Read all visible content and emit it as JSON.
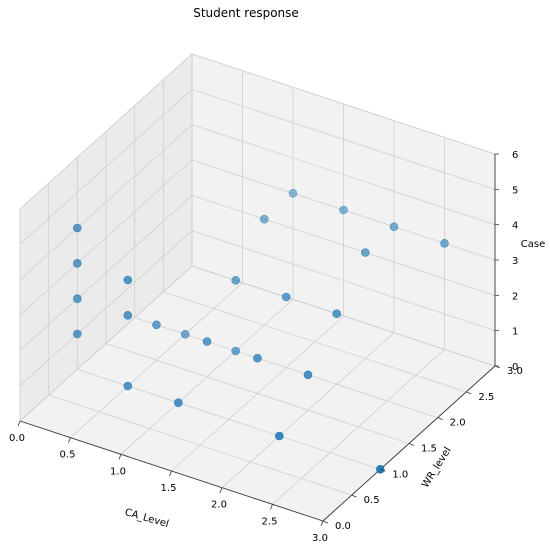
{
  "chart_data": {
    "type": "scatter3d",
    "title": "Student response",
    "xlabel": "CA_Level",
    "ylabel": "WR_level",
    "zlabel": "Case",
    "xlim": [
      0.0,
      3.0
    ],
    "ylim": [
      0.0,
      3.0
    ],
    "zlim": [
      0,
      6
    ],
    "x_ticks": [
      "0.0",
      "0.5",
      "1.0",
      "1.5",
      "2.0",
      "2.5",
      "3.0"
    ],
    "y_ticks": [
      "0.0",
      "0.5",
      "1.0",
      "1.5",
      "2.0",
      "2.5",
      "3.0"
    ],
    "z_ticks": [
      "0",
      "1",
      "2",
      "3",
      "4",
      "5",
      "6"
    ],
    "grid": true,
    "marker_color": "#1f77b4",
    "pane_color": "#f2f2f2",
    "points": [
      {
        "x": 0.0,
        "y": 1.0,
        "z": 4
      },
      {
        "x": 0.0,
        "y": 1.0,
        "z": 3
      },
      {
        "x": 0.0,
        "y": 1.0,
        "z": 2
      },
      {
        "x": 0.0,
        "y": 1.0,
        "z": 1
      },
      {
        "x": 0.5,
        "y": 1.0,
        "z": 0
      },
      {
        "x": 1.0,
        "y": 1.0,
        "z": 0
      },
      {
        "x": 2.0,
        "y": 1.0,
        "z": 0
      },
      {
        "x": 3.0,
        "y": 1.0,
        "z": 0
      },
      {
        "x": 0.5,
        "y": 2.0,
        "z": 0
      },
      {
        "x": 1.0,
        "y": 2.0,
        "z": 0
      },
      {
        "x": 0.5,
        "y": 1.5,
        "z": 1
      },
      {
        "x": 1.0,
        "y": 1.5,
        "z": 1
      },
      {
        "x": 1.5,
        "y": 1.5,
        "z": 1
      },
      {
        "x": 2.0,
        "y": 1.5,
        "z": 1
      },
      {
        "x": 0.5,
        "y": 1.0,
        "z": 2
      },
      {
        "x": 1.0,
        "y": 2.0,
        "z": 2
      },
      {
        "x": 1.5,
        "y": 2.0,
        "z": 2
      },
      {
        "x": 2.0,
        "y": 2.0,
        "z": 2
      },
      {
        "x": 0.5,
        "y": 1.0,
        "z": 3
      },
      {
        "x": 1.0,
        "y": 2.5,
        "z": 3
      },
      {
        "x": 1.0,
        "y": 3.0,
        "z": 3
      },
      {
        "x": 1.5,
        "y": 3.0,
        "z": 3
      },
      {
        "x": 2.0,
        "y": 2.5,
        "z": 3
      },
      {
        "x": 2.0,
        "y": 3.0,
        "z": 3
      },
      {
        "x": 2.5,
        "y": 3.0,
        "z": 3
      }
    ]
  }
}
